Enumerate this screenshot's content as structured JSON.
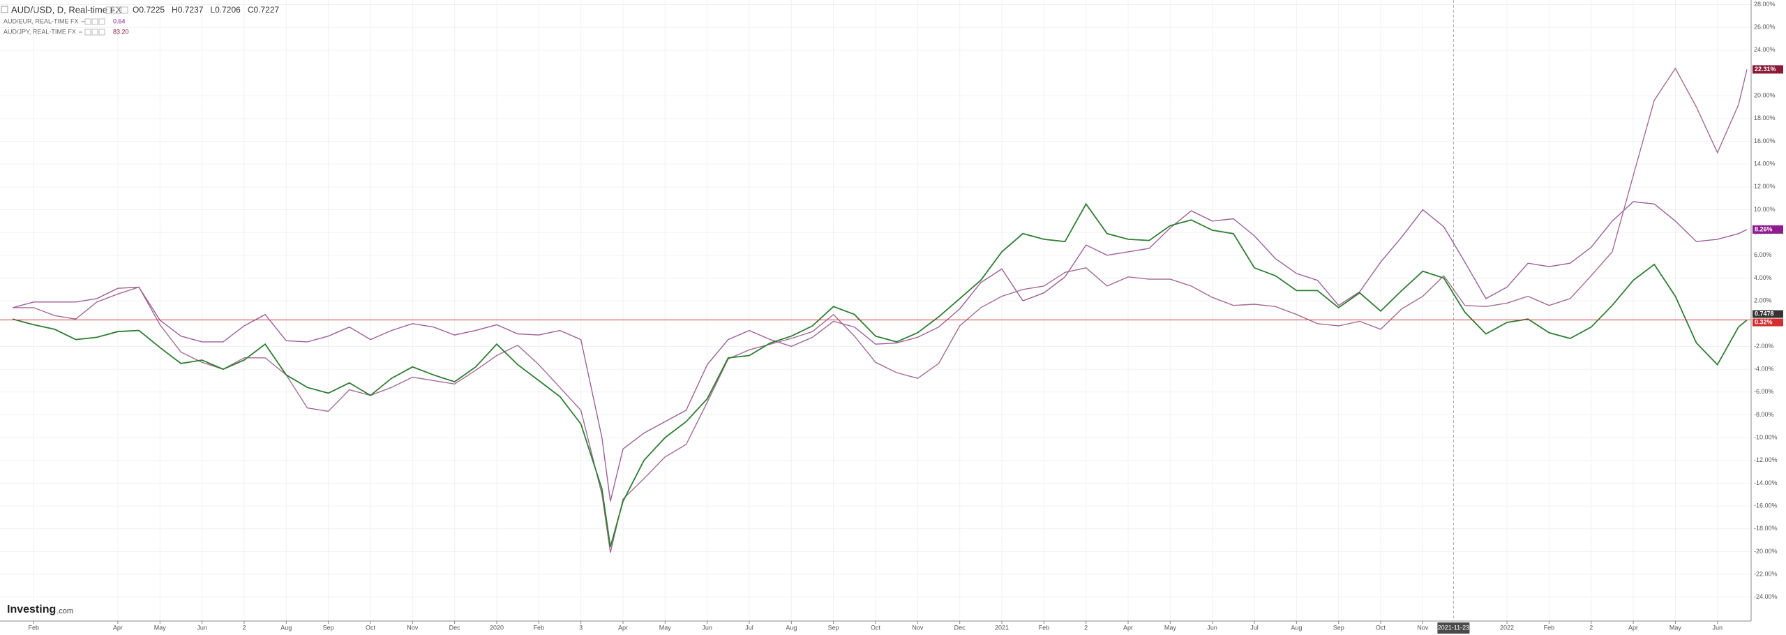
{
  "chart_data": {
    "type": "line",
    "header": {
      "title": "AUD/USD, D, Real-time FX",
      "ohlc": [
        "O0.7225",
        "H0.7237",
        "L0.7206",
        "C0.7227"
      ]
    },
    "watermark": {
      "main": "Investing",
      "suffix": ".com"
    },
    "crosshair": {
      "x": 34.73,
      "label": "2021-11-23"
    },
    "x": [
      0.5,
      1,
      1.5,
      2,
      2.5,
      3,
      3.5,
      4,
      4.5,
      5,
      5.5,
      6,
      6.5,
      7,
      7.5,
      8,
      8.5,
      9,
      9.5,
      10,
      10.5,
      11,
      11.5,
      12,
      12.5,
      13,
      13.5,
      14,
      14.5,
      14.7,
      15,
      15.5,
      16,
      16.5,
      17,
      17.5,
      18,
      18.5,
      19,
      19.5,
      20,
      20.5,
      21,
      21.5,
      22,
      22.5,
      23,
      23.5,
      24,
      24.5,
      25,
      25.5,
      26,
      26.5,
      27,
      27.5,
      28,
      28.5,
      29,
      29.5,
      30,
      30.5,
      31,
      31.5,
      32,
      32.5,
      33,
      33.5,
      34,
      34.5,
      35,
      35.5,
      36,
      36.5,
      37,
      37.5,
      38,
      38.5,
      39,
      39.5,
      40,
      40.5,
      41,
      41.5,
      41.7
    ],
    "series": [
      {
        "name": "AUD/USD, D, Real-time FX",
        "color": "#2e7d32",
        "last_label": "0.32%",
        "price_label": "0.7478",
        "level_color": "#d32f2f",
        "values": [
          0.4,
          -0.1,
          -0.5,
          -1.4,
          -1.2,
          -0.7,
          -0.6,
          -2.1,
          -3.5,
          -3.2,
          -4.0,
          -3.2,
          -1.8,
          -4.5,
          -5.6,
          -6.1,
          -5.2,
          -6.3,
          -4.8,
          -3.8,
          -4.5,
          -5.1,
          -3.8,
          -1.8,
          -3.6,
          -5.0,
          -6.4,
          -8.8,
          -14.5,
          -19.6,
          -15.6,
          -12.0,
          -10.0,
          -8.6,
          -6.6,
          -3.0,
          -2.8,
          -1.7,
          -1.1,
          -0.2,
          1.5,
          0.8,
          -1.1,
          -1.6,
          -0.8,
          0.6,
          2.2,
          3.8,
          6.3,
          7.9,
          7.4,
          7.2,
          10.5,
          7.9,
          7.4,
          7.3,
          8.6,
          9.1,
          8.2,
          7.9,
          4.9,
          4.2,
          2.9,
          2.9,
          1.4,
          2.7,
          1.1,
          2.9,
          4.6,
          4.0,
          1.0,
          -0.9,
          0.1,
          0.4,
          -0.8,
          -1.3,
          -0.3,
          1.6,
          3.8,
          5.2,
          2.4,
          -1.7,
          -3.6,
          -0.3,
          0.32
        ]
      },
      {
        "name": "AUD/EUR, REAL-TIME FX",
        "legend_value": "0.64",
        "color": "#9c5f99",
        "flag_color": "#8e1c8e",
        "last_label": "8.26%",
        "values": [
          1.4,
          1.9,
          1.9,
          1.9,
          2.2,
          3.1,
          3.2,
          0.3,
          -1.1,
          -1.6,
          -1.6,
          -0.2,
          0.8,
          -1.5,
          -1.6,
          -1.1,
          -0.3,
          -1.4,
          -0.6,
          0.0,
          -0.3,
          -1.0,
          -0.6,
          -0.1,
          -0.9,
          -1.0,
          -0.6,
          -1.4,
          -10.0,
          -15.6,
          -11.0,
          -9.6,
          -8.6,
          -7.6,
          -3.6,
          -1.4,
          -0.6,
          -1.4,
          -2.0,
          -1.2,
          0.2,
          -0.3,
          -1.8,
          -1.7,
          -1.2,
          -0.3,
          1.3,
          3.6,
          4.8,
          2.0,
          2.7,
          4.1,
          6.9,
          6.0,
          6.3,
          6.6,
          8.4,
          9.9,
          9.0,
          9.2,
          7.7,
          5.7,
          4.4,
          3.8,
          1.6,
          2.8,
          5.4,
          7.6,
          10.0,
          8.5,
          5.4,
          2.2,
          3.2,
          5.3,
          5.0,
          5.3,
          6.7,
          9.0,
          10.7,
          10.5,
          9.0,
          7.2,
          7.4,
          7.9,
          8.26
        ]
      },
      {
        "name": "AUD/JPY, REAL-TIME FX",
        "legend_value": "83.20",
        "color": "#a56b93",
        "flag_color": "#8b1a3a",
        "last_label": "22.31%",
        "values": [
          1.4,
          1.4,
          0.7,
          0.4,
          1.9,
          2.6,
          3.2,
          -0.1,
          -2.5,
          -3.4,
          -4.0,
          -3.0,
          -3.0,
          -4.5,
          -7.4,
          -7.7,
          -5.8,
          -6.3,
          -5.6,
          -4.7,
          -5.0,
          -5.3,
          -4.1,
          -2.8,
          -1.9,
          -3.6,
          -5.6,
          -7.6,
          -15.0,
          -20.1,
          -15.4,
          -13.6,
          -11.7,
          -10.6,
          -6.9,
          -3.1,
          -2.3,
          -1.8,
          -1.3,
          -0.7,
          0.8,
          -1.1,
          -3.4,
          -4.3,
          -4.8,
          -3.5,
          -0.2,
          1.4,
          2.4,
          3.0,
          3.3,
          4.5,
          4.9,
          3.3,
          4.1,
          3.9,
          3.9,
          3.3,
          2.3,
          1.6,
          1.7,
          1.5,
          0.8,
          0.0,
          -0.2,
          0.2,
          -0.5,
          1.3,
          2.4,
          4.2,
          1.6,
          1.5,
          1.8,
          2.4,
          1.6,
          2.2,
          4.2,
          6.3,
          13.0,
          19.6,
          22.4,
          19.0,
          15.0,
          19.2,
          22.31
        ]
      }
    ],
    "xlim": [
      0.2,
      41.8
    ],
    "xticks": [
      {
        "value": 1,
        "label": "Feb"
      },
      {
        "value": 3,
        "label": "Apr"
      },
      {
        "value": 4,
        "label": "May"
      },
      {
        "value": 5,
        "label": "Jun"
      },
      {
        "value": 6,
        "label": "2"
      },
      {
        "value": 7,
        "label": "Aug"
      },
      {
        "value": 8,
        "label": "Sep"
      },
      {
        "value": 9,
        "label": "Oct"
      },
      {
        "value": 10,
        "label": "Nov"
      },
      {
        "value": 11,
        "label": "Dec"
      },
      {
        "value": 12,
        "label": "2020"
      },
      {
        "value": 13,
        "label": "Feb"
      },
      {
        "value": 14,
        "label": "3"
      },
      {
        "value": 15,
        "label": "Apr"
      },
      {
        "value": 16,
        "label": "May"
      },
      {
        "value": 17,
        "label": "Jun"
      },
      {
        "value": 18,
        "label": "Jul"
      },
      {
        "value": 19,
        "label": "Aug"
      },
      {
        "value": 20,
        "label": "Sep"
      },
      {
        "value": 21,
        "label": "Oct"
      },
      {
        "value": 22,
        "label": "Nov"
      },
      {
        "value": 23,
        "label": "Dec"
      },
      {
        "value": 24,
        "label": "2021"
      },
      {
        "value": 25,
        "label": "Feb"
      },
      {
        "value": 26,
        "label": "2"
      },
      {
        "value": 27,
        "label": "Apr"
      },
      {
        "value": 28,
        "label": "May"
      },
      {
        "value": 29,
        "label": "Jun"
      },
      {
        "value": 30,
        "label": "Jul"
      },
      {
        "value": 31,
        "label": "Aug"
      },
      {
        "value": 32,
        "label": "Sep"
      },
      {
        "value": 33,
        "label": "Oct"
      },
      {
        "value": 34,
        "label": "Nov"
      },
      {
        "value": 36,
        "label": "2022"
      },
      {
        "value": 37,
        "label": "Feb"
      },
      {
        "value": 38,
        "label": "2"
      },
      {
        "value": 39,
        "label": "Apr"
      },
      {
        "value": 40,
        "label": "May"
      },
      {
        "value": 41,
        "label": "Jun"
      }
    ],
    "ylim": [
      -26.1,
      28.4
    ],
    "yticks": [
      {
        "value": 28,
        "label": "28.00%"
      },
      {
        "value": 26,
        "label": "26.00%"
      },
      {
        "value": 24,
        "label": "24.00%"
      },
      {
        "value": 20,
        "label": "20.00%"
      },
      {
        "value": 18,
        "label": "18.00%"
      },
      {
        "value": 16,
        "label": "16.00%"
      },
      {
        "value": 14,
        "label": "14.00%"
      },
      {
        "value": 12,
        "label": "12.00%"
      },
      {
        "value": 10,
        "label": "10.00%"
      },
      {
        "value": 8,
        "label": "8.00%"
      },
      {
        "value": 6,
        "label": "6.00%"
      },
      {
        "value": 4,
        "label": "4.00%"
      },
      {
        "value": 2,
        "label": "2.00%"
      },
      {
        "value": -2,
        "label": "-2.00%"
      },
      {
        "value": -4,
        "label": "-4.00%"
      },
      {
        "value": -6,
        "label": "-6.00%"
      },
      {
        "value": -8,
        "label": "-8.00%"
      },
      {
        "value": -10,
        "label": "-10.00%"
      },
      {
        "value": -12,
        "label": "-12.00%"
      },
      {
        "value": -14,
        "label": "-14.00%"
      },
      {
        "value": -16,
        "label": "-16.00%"
      },
      {
        "value": -18,
        "label": "-18.00%"
      },
      {
        "value": -20,
        "label": "-20.00%"
      },
      {
        "value": -22,
        "label": "-22.00%"
      },
      {
        "value": -24,
        "label": "-24.00%"
      }
    ],
    "grid": true
  }
}
